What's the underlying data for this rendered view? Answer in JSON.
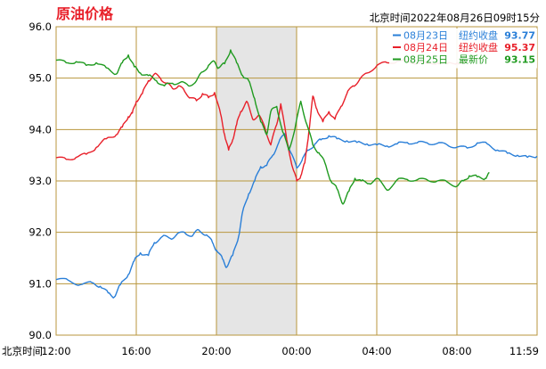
{
  "header": {
    "title": "原油价格",
    "timestamp": "北京时间2022年08月26日09时15分"
  },
  "colors": {
    "title": "#e8202a",
    "grid": "#b8963c",
    "axis_text": "#000000",
    "shade": "#dcdcdc"
  },
  "chart_data": {
    "type": "line",
    "xlabel": "北京时间",
    "ylabel": "",
    "title": "原油价格",
    "x_tick_labels": [
      "12:00",
      "16:00",
      "20:00",
      "00:00",
      "04:00",
      "08:00",
      "11:59"
    ],
    "x_range_hours": [
      0,
      23.98
    ],
    "ylim": [
      90.0,
      96.0
    ],
    "y_ticks": [
      "90.0",
      "91.0",
      "92.0",
      "93.0",
      "94.0",
      "95.0",
      "96.0"
    ],
    "grid": true,
    "shaded_session": {
      "start_hour": 8.0,
      "end_hour": 12.0
    },
    "legend_position": "top-right",
    "series": [
      {
        "name": "08月23日",
        "legend_label": "纽约收盘",
        "last_value": "93.77",
        "color": "#2a7fd8",
        "points": [
          [
            0,
            91.08
          ],
          [
            0.6,
            91.07
          ],
          [
            1.2,
            90.98
          ],
          [
            1.8,
            91.02
          ],
          [
            2.2,
            90.95
          ],
          [
            2.6,
            90.82
          ],
          [
            2.9,
            90.74
          ],
          [
            3.2,
            90.98
          ],
          [
            3.6,
            91.18
          ],
          [
            3.9,
            91.45
          ],
          [
            4.2,
            91.6
          ],
          [
            4.6,
            91.55
          ],
          [
            4.9,
            91.8
          ],
          [
            5.3,
            91.92
          ],
          [
            5.7,
            91.88
          ],
          [
            6.0,
            91.95
          ],
          [
            6.4,
            92.0
          ],
          [
            6.8,
            91.93
          ],
          [
            7.1,
            92.05
          ],
          [
            7.5,
            91.95
          ],
          [
            7.8,
            91.8
          ],
          [
            8.0,
            91.65
          ],
          [
            8.3,
            91.48
          ],
          [
            8.5,
            91.32
          ],
          [
            8.8,
            91.55
          ],
          [
            9.1,
            91.92
          ],
          [
            9.3,
            92.4
          ],
          [
            9.6,
            92.75
          ],
          [
            9.9,
            93.0
          ],
          [
            10.2,
            93.28
          ],
          [
            10.5,
            93.3
          ],
          [
            10.8,
            93.5
          ],
          [
            11.1,
            93.75
          ],
          [
            11.4,
            93.92
          ],
          [
            11.7,
            93.55
          ],
          [
            12.0,
            93.25
          ],
          [
            12.3,
            93.45
          ],
          [
            12.6,
            93.6
          ],
          [
            12.9,
            93.72
          ],
          [
            13.2,
            93.8
          ],
          [
            13.6,
            93.88
          ],
          [
            14.0,
            93.82
          ],
          [
            14.5,
            93.78
          ],
          [
            15.0,
            93.75
          ],
          [
            15.5,
            93.72
          ],
          [
            16.0,
            93.7
          ],
          [
            16.5,
            93.68
          ],
          [
            17.0,
            93.72
          ],
          [
            17.5,
            93.75
          ],
          [
            18.0,
            93.74
          ],
          [
            18.5,
            93.74
          ],
          [
            19.0,
            93.73
          ],
          [
            19.5,
            93.7
          ],
          [
            20.0,
            93.66
          ],
          [
            20.5,
            93.64
          ],
          [
            21.0,
            93.74
          ],
          [
            21.5,
            93.72
          ],
          [
            22.0,
            93.6
          ],
          [
            22.5,
            93.54
          ],
          [
            23.0,
            93.5
          ],
          [
            23.5,
            93.46
          ],
          [
            23.98,
            93.48
          ]
        ]
      },
      {
        "name": "08月24日",
        "legend_label": "纽约收盘",
        "last_value": "95.37",
        "color": "#e8202a",
        "points": [
          [
            0,
            93.45
          ],
          [
            0.5,
            93.42
          ],
          [
            1.0,
            93.46
          ],
          [
            1.5,
            93.52
          ],
          [
            2.0,
            93.65
          ],
          [
            2.5,
            93.82
          ],
          [
            3.0,
            93.9
          ],
          [
            3.3,
            94.05
          ],
          [
            3.6,
            94.25
          ],
          [
            3.8,
            94.32
          ],
          [
            4.0,
            94.55
          ],
          [
            4.3,
            94.7
          ],
          [
            4.6,
            94.95
          ],
          [
            4.9,
            95.08
          ],
          [
            5.2,
            95.0
          ],
          [
            5.5,
            94.9
          ],
          [
            5.8,
            94.8
          ],
          [
            6.1,
            94.85
          ],
          [
            6.4,
            94.75
          ],
          [
            6.7,
            94.62
          ],
          [
            7.0,
            94.56
          ],
          [
            7.3,
            94.7
          ],
          [
            7.6,
            94.62
          ],
          [
            7.9,
            94.72
          ],
          [
            8.2,
            94.3
          ],
          [
            8.4,
            93.9
          ],
          [
            8.6,
            93.6
          ],
          [
            8.8,
            93.8
          ],
          [
            9.0,
            94.1
          ],
          [
            9.2,
            94.35
          ],
          [
            9.5,
            94.55
          ],
          [
            9.8,
            94.2
          ],
          [
            10.1,
            94.28
          ],
          [
            10.4,
            94.05
          ],
          [
            10.7,
            93.7
          ],
          [
            11.0,
            94.1
          ],
          [
            11.2,
            94.5
          ],
          [
            11.5,
            93.8
          ],
          [
            11.8,
            93.25
          ],
          [
            12.0,
            93.0
          ],
          [
            12.2,
            93.1
          ],
          [
            12.4,
            93.35
          ],
          [
            12.6,
            93.95
          ],
          [
            12.8,
            94.65
          ],
          [
            13.0,
            94.4
          ],
          [
            13.3,
            94.15
          ],
          [
            13.6,
            94.35
          ],
          [
            13.9,
            94.2
          ],
          [
            14.2,
            94.45
          ],
          [
            14.5,
            94.7
          ],
          [
            14.8,
            94.85
          ],
          [
            15.1,
            94.95
          ],
          [
            15.5,
            95.1
          ],
          [
            16.0,
            95.25
          ],
          [
            16.5,
            95.3
          ],
          [
            17.0,
            95.33
          ],
          [
            17.5,
            95.32
          ],
          [
            18.0,
            95.3
          ],
          [
            18.5,
            95.28
          ],
          [
            19.0,
            95.3
          ],
          [
            19.5,
            95.28
          ],
          [
            20.0,
            95.3
          ],
          [
            20.4,
            95.3
          ]
        ]
      },
      {
        "name": "08月25日",
        "legend_label": "最新价",
        "last_value": "93.15",
        "color": "#1f9a1f",
        "points": [
          [
            0,
            95.35
          ],
          [
            0.5,
            95.3
          ],
          [
            1.0,
            95.32
          ],
          [
            1.5,
            95.25
          ],
          [
            2.0,
            95.3
          ],
          [
            2.5,
            95.2
          ],
          [
            3.0,
            95.08
          ],
          [
            3.3,
            95.3
          ],
          [
            3.6,
            95.45
          ],
          [
            3.9,
            95.22
          ],
          [
            4.2,
            95.1
          ],
          [
            4.6,
            95.05
          ],
          [
            5.0,
            94.95
          ],
          [
            5.4,
            94.85
          ],
          [
            5.8,
            94.9
          ],
          [
            6.2,
            94.92
          ],
          [
            6.6,
            94.85
          ],
          [
            7.0,
            94.95
          ],
          [
            7.3,
            95.12
          ],
          [
            7.6,
            95.25
          ],
          [
            7.9,
            95.32
          ],
          [
            8.1,
            95.2
          ],
          [
            8.4,
            95.28
          ],
          [
            8.7,
            95.55
          ],
          [
            9.0,
            95.3
          ],
          [
            9.3,
            95.05
          ],
          [
            9.6,
            94.95
          ],
          [
            9.9,
            94.6
          ],
          [
            10.2,
            94.15
          ],
          [
            10.5,
            93.9
          ],
          [
            10.7,
            94.35
          ],
          [
            11.0,
            94.45
          ],
          [
            11.3,
            93.95
          ],
          [
            11.6,
            93.6
          ],
          [
            11.9,
            94.0
          ],
          [
            12.2,
            94.55
          ],
          [
            12.5,
            94.1
          ],
          [
            12.8,
            93.7
          ],
          [
            13.1,
            93.55
          ],
          [
            13.4,
            93.35
          ],
          [
            13.7,
            93.0
          ],
          [
            14.0,
            92.85
          ],
          [
            14.3,
            92.55
          ],
          [
            14.6,
            92.8
          ],
          [
            14.9,
            93.05
          ],
          [
            15.2,
            93.0
          ],
          [
            15.6,
            92.95
          ],
          [
            16.0,
            93.05
          ],
          [
            16.5,
            92.82
          ],
          [
            17.0,
            93.02
          ],
          [
            17.5,
            93.03
          ],
          [
            18.0,
            93.02
          ],
          [
            18.5,
            93.02
          ],
          [
            19.0,
            93.0
          ],
          [
            19.5,
            92.98
          ],
          [
            20.0,
            92.9
          ],
          [
            20.3,
            93.0
          ],
          [
            20.6,
            93.1
          ],
          [
            21.0,
            93.08
          ],
          [
            21.4,
            93.05
          ],
          [
            21.6,
            93.15
          ]
        ]
      }
    ]
  }
}
